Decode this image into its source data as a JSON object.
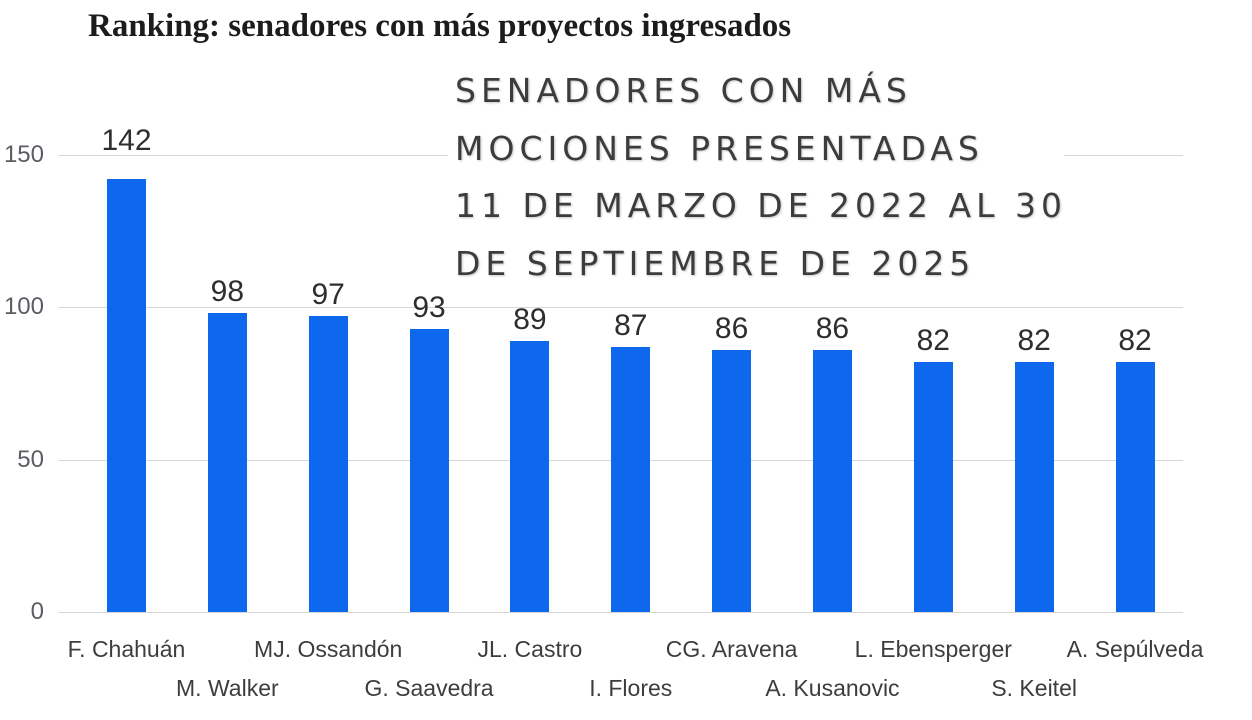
{
  "header": {
    "title": "Ranking: senadores con más proyectos ingresados"
  },
  "chart_data": {
    "type": "bar",
    "title_lines": [
      "SENADORES CON MÁS",
      "MOCIONES PRESENTADAS",
      "11 DE MARZO DE 2022 AL 30",
      "DE SEPTIEMBRE DE 2025"
    ],
    "categories": [
      "F. Chahuán",
      "M. Walker",
      "MJ. Ossandón",
      "G. Saavedra",
      "JL. Castro",
      "I. Flores",
      "CG. Aravena",
      "A. Kusanovic",
      "L. Ebensperger",
      "S. Keitel",
      "A. Sepúlveda"
    ],
    "values": [
      142,
      98,
      97,
      93,
      89,
      87,
      86,
      86,
      82,
      82,
      82
    ],
    "y_ticks": [
      0,
      50,
      100,
      150
    ],
    "ylim": [
      0,
      150
    ],
    "bar_color": "#0d68ee",
    "grid": true,
    "legend_position": "none",
    "xlabel": "",
    "ylabel": ""
  }
}
